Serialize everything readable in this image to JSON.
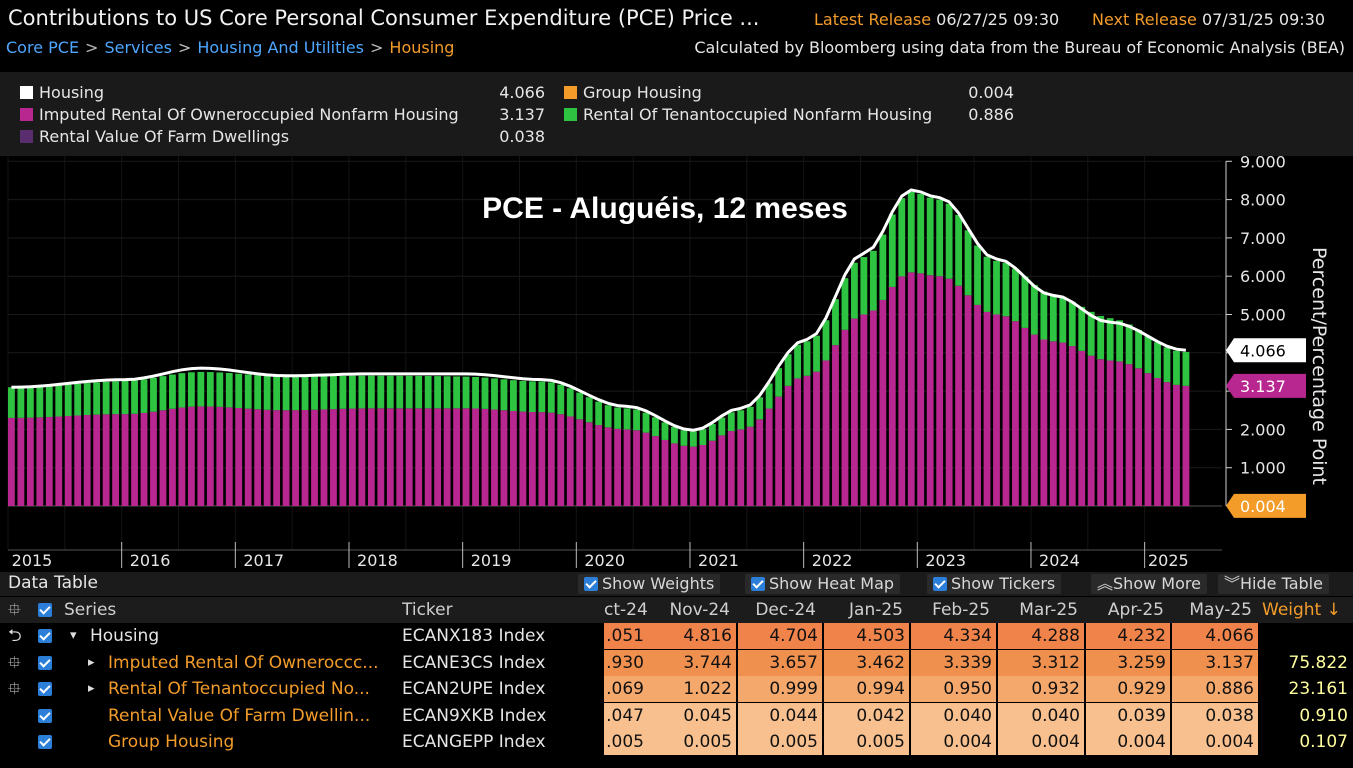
{
  "header": {
    "title": "Contributions to US Core Personal Consumer Expenditure (PCE) Price ...",
    "latest_label": "Latest Release",
    "latest_value": "06/27/25 09:30",
    "next_label": "Next Release",
    "next_value": "07/31/25 09:30",
    "breadcrumb": [
      "Core PCE",
      "Services",
      "Housing And Utilities",
      "Housing"
    ],
    "source_note": "Calculated by Bloomberg using data from the Bureau of Economic Analysis (BEA)"
  },
  "legend": [
    {
      "label": "Housing",
      "value": "4.066",
      "color": "#ffffff"
    },
    {
      "label": "Imputed Rental Of Owneroccupied Nonfarm Housing",
      "value": "3.137",
      "color": "#b8268f"
    },
    {
      "label": "Rental Value Of Farm Dwellings",
      "value": "0.038",
      "color": "#5a2d6e"
    },
    {
      "label": "Group Housing",
      "value": "0.004",
      "color": "#f39c2a"
    },
    {
      "label": "Rental Of Tenantoccupied Nonfarm Housing",
      "value": "0.886",
      "color": "#2ec442"
    }
  ],
  "chart_data": {
    "type": "bar",
    "title": "PCE - Aluguéis, 12 meses",
    "ylabel": "Percent/Percentage Point",
    "ylim": [
      -0.5,
      9
    ],
    "yticks": [
      "1.000",
      "2.000",
      "3.000",
      "4.000",
      "5.000",
      "6.000",
      "7.000",
      "8.000",
      "9.000"
    ],
    "xticks": [
      "2015",
      "2016",
      "2017",
      "2018",
      "2019",
      "2020",
      "2021",
      "2022",
      "2023",
      "2024",
      "2025"
    ],
    "x_start": "2015-01",
    "x_end": "2025-05",
    "series": [
      {
        "name": "Imputed Rental Of Owneroccupied Nonfarm Housing",
        "color": "#b8268f",
        "anchors": [
          [
            "2015-01",
            2.3
          ],
          [
            "2016-01",
            2.4
          ],
          [
            "2016-09",
            2.6
          ],
          [
            "2017-06",
            2.5
          ],
          [
            "2018-03",
            2.55
          ],
          [
            "2019-01",
            2.55
          ],
          [
            "2019-09",
            2.45
          ],
          [
            "2020-06",
            2.0
          ],
          [
            "2021-01",
            1.55
          ],
          [
            "2021-06",
            2.0
          ],
          [
            "2022-01",
            3.4
          ],
          [
            "2022-07",
            5.0
          ],
          [
            "2022-12",
            6.1
          ],
          [
            "2023-03",
            6.0
          ],
          [
            "2023-09",
            5.0
          ],
          [
            "2024-03",
            4.3
          ],
          [
            "2024-09",
            3.8
          ],
          [
            "2025-05",
            3.137
          ]
        ]
      },
      {
        "name": "Rental Of Tenantoccupied Nonfarm Housing",
        "color": "#2ec442",
        "anchors": [
          [
            "2015-01",
            0.8
          ],
          [
            "2016-09",
            0.9
          ],
          [
            "2018-06",
            0.85
          ],
          [
            "2019-09",
            0.8
          ],
          [
            "2020-06",
            0.55
          ],
          [
            "2021-01",
            0.4
          ],
          [
            "2021-06",
            0.5
          ],
          [
            "2022-01",
            0.9
          ],
          [
            "2022-07",
            1.5
          ],
          [
            "2022-12",
            2.1
          ],
          [
            "2023-03",
            2.0
          ],
          [
            "2023-09",
            1.4
          ],
          [
            "2024-06",
            1.15
          ],
          [
            "2025-05",
            0.886
          ]
        ]
      },
      {
        "name": "Housing",
        "color": "#ffffff",
        "anchors": [
          [
            "2015-01",
            3.1
          ],
          [
            "2016-01",
            3.3
          ],
          [
            "2016-09",
            3.6
          ],
          [
            "2017-06",
            3.4
          ],
          [
            "2018-03",
            3.45
          ],
          [
            "2019-01",
            3.45
          ],
          [
            "2019-09",
            3.3
          ],
          [
            "2020-06",
            2.6
          ],
          [
            "2021-01",
            1.98
          ],
          [
            "2021-06",
            2.55
          ],
          [
            "2022-01",
            4.35
          ],
          [
            "2022-07",
            6.6
          ],
          [
            "2022-12",
            8.25
          ],
          [
            "2023-03",
            8.05
          ],
          [
            "2023-09",
            6.45
          ],
          [
            "2024-03",
            5.5
          ],
          [
            "2024-09",
            4.8
          ],
          [
            "2025-05",
            4.066
          ]
        ]
      }
    ],
    "end_labels": [
      {
        "value": "4.066",
        "color": "#ffffff"
      },
      {
        "value": "3.137",
        "color": "#b8268f"
      },
      {
        "value": "0.004",
        "color": "#f39c2a"
      }
    ]
  },
  "data_table": {
    "title": "Data Table",
    "toolbar": {
      "show_weights": "Show Weights",
      "show_heatmap": "Show Heat Map",
      "show_tickers": "Show Tickers",
      "show_more": "Show More",
      "hide_table": "Hide Table"
    },
    "columns": {
      "series": "Series",
      "ticker": "Ticker",
      "months": [
        "ct-24",
        "Nov-24",
        "Dec-24",
        "Jan-25",
        "Feb-25",
        "Mar-25",
        "Apr-25",
        "May-25"
      ],
      "weight": "Weight ↓"
    },
    "rows": [
      {
        "name": "Housing",
        "prefix": "▾",
        "ticker": "ECANX183 Index",
        "values": [
          ".051",
          "4.816",
          "4.704",
          "4.503",
          "4.334",
          "4.288",
          "4.232",
          "4.066"
        ],
        "weight": ""
      },
      {
        "name": "Imputed Rental Of Owneroccc...",
        "prefix": "▸",
        "ticker": "ECANE3CS Index",
        "values": [
          ".930",
          "3.744",
          "3.657",
          "3.462",
          "3.339",
          "3.312",
          "3.259",
          "3.137"
        ],
        "weight": "75.822"
      },
      {
        "name": "Rental Of Tenantoccupied No...",
        "prefix": "▸",
        "ticker": "ECAN2UPE Index",
        "values": [
          ".069",
          "1.022",
          "0.999",
          "0.994",
          "0.950",
          "0.932",
          "0.929",
          "0.886"
        ],
        "weight": "23.161"
      },
      {
        "name": "Rental Value Of Farm Dwellin...",
        "prefix": "",
        "ticker": "ECAN9XKB Index",
        "values": [
          ".047",
          "0.045",
          "0.044",
          "0.042",
          "0.040",
          "0.040",
          "0.039",
          "0.038"
        ],
        "weight": "0.910"
      },
      {
        "name": "Group Housing",
        "prefix": "",
        "ticker": "ECANGEPP Index",
        "values": [
          ".005",
          "0.005",
          "0.005",
          "0.005",
          "0.004",
          "0.004",
          "0.004",
          "0.004"
        ],
        "weight": "0.107"
      }
    ]
  }
}
